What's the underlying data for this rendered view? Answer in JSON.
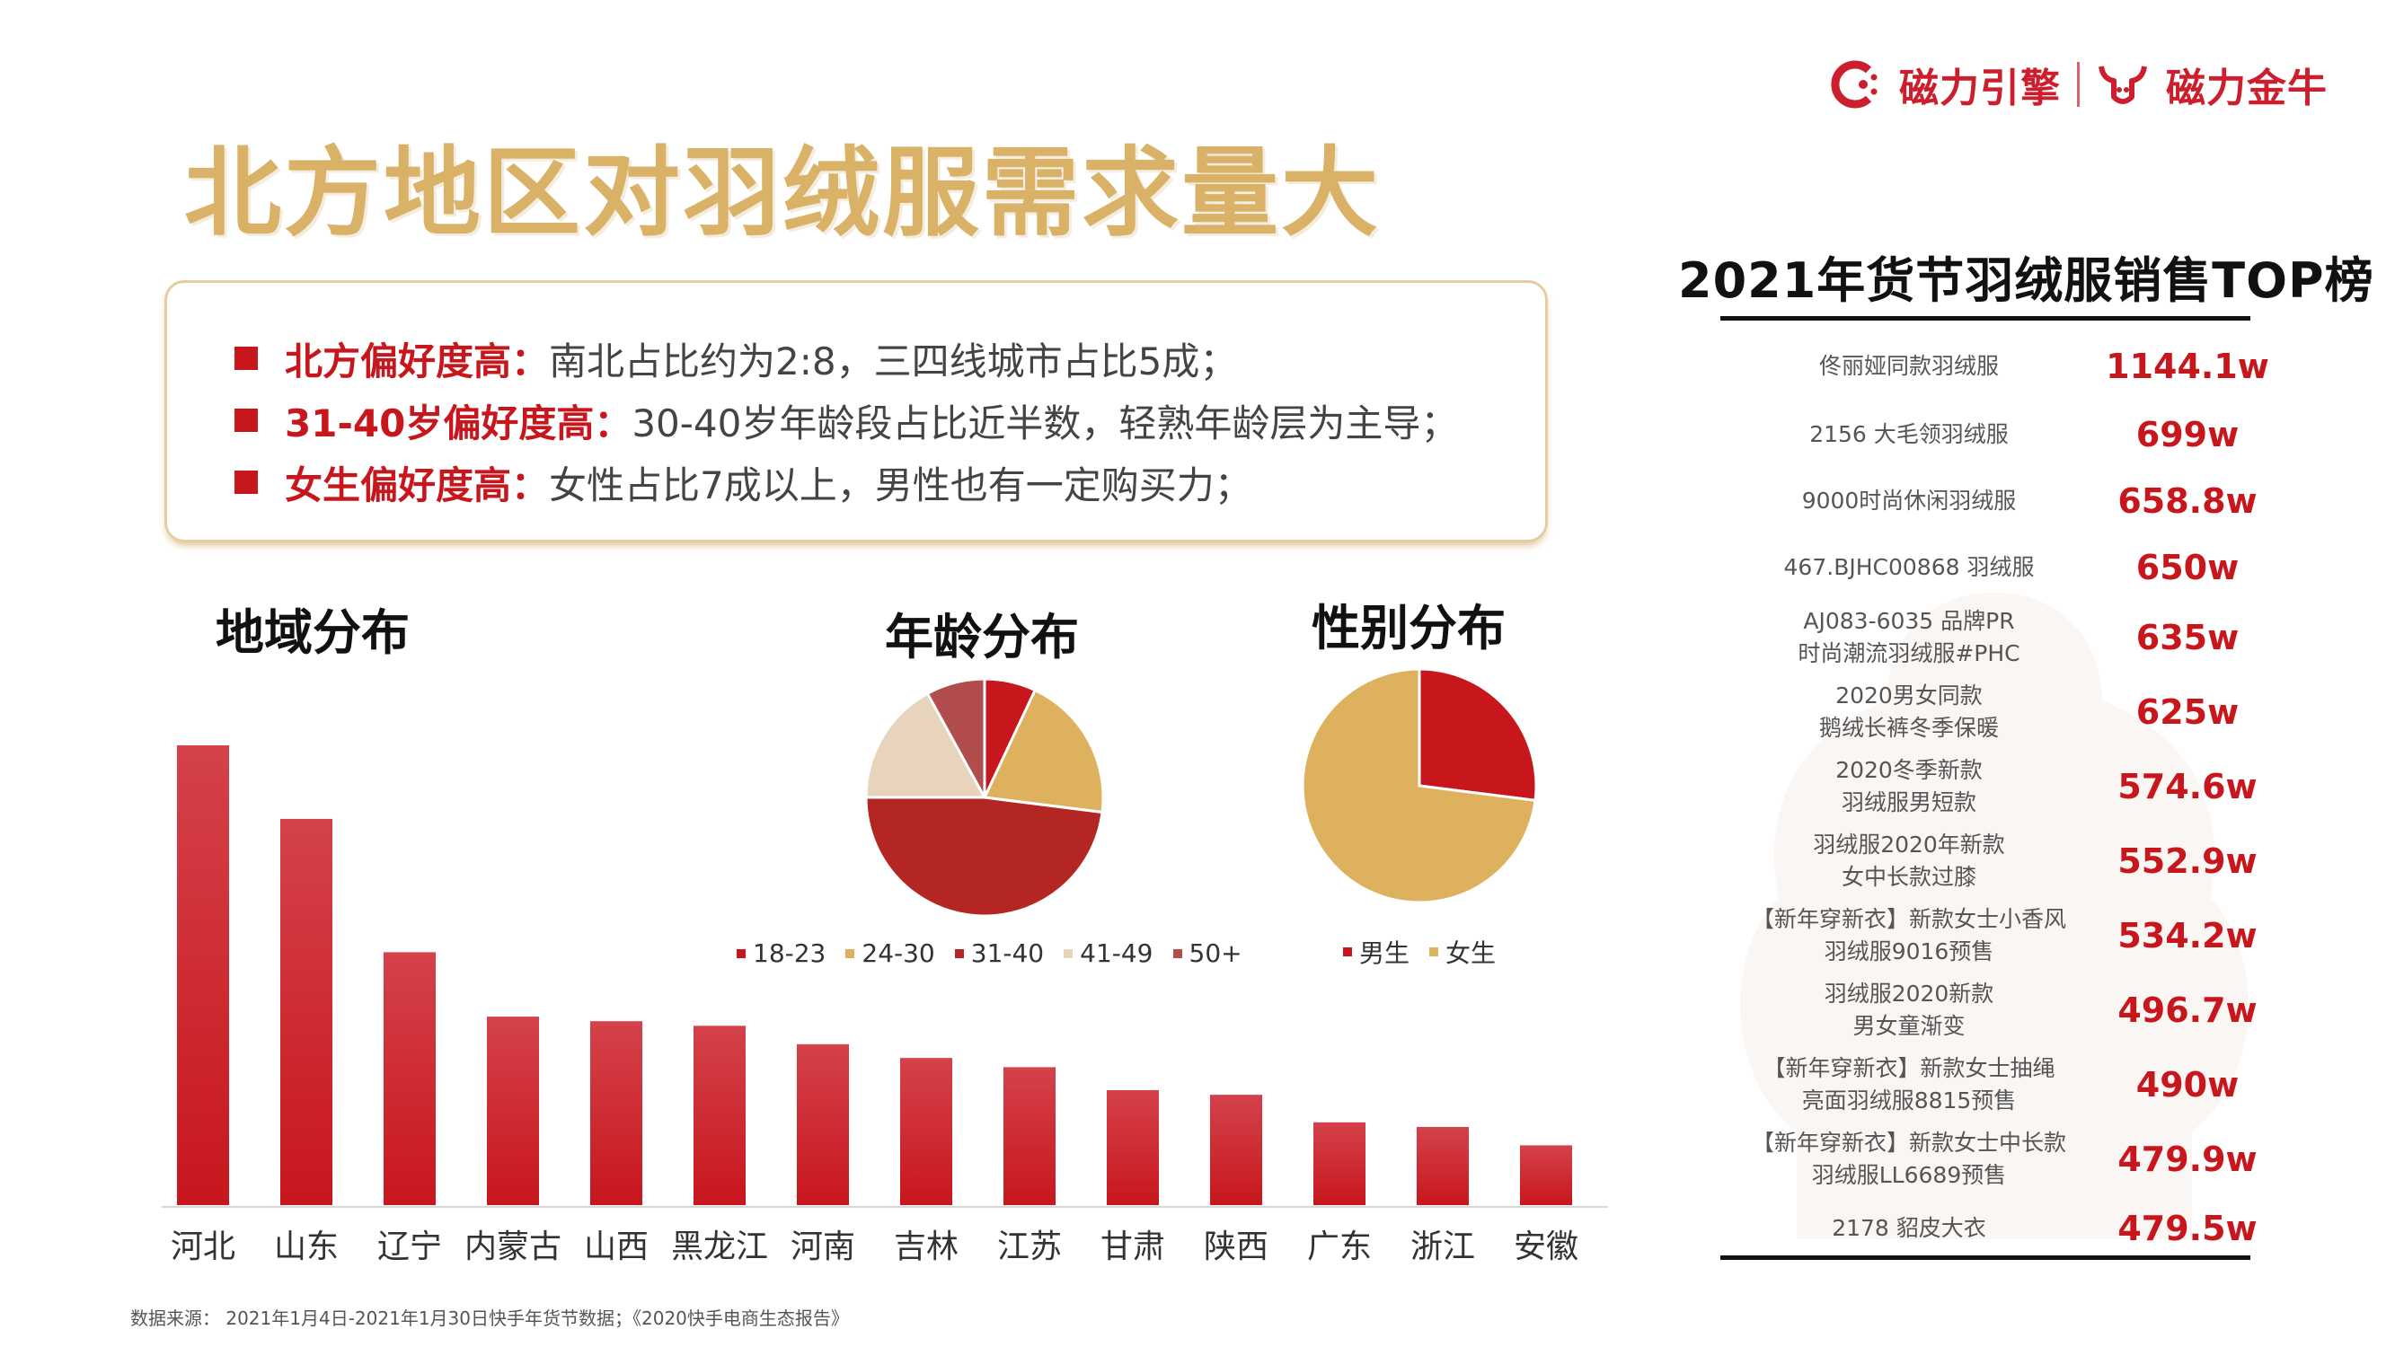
{
  "brand": {
    "logo1": "磁力引擎",
    "logo2": "磁力金牛"
  },
  "title": "北方地区对羽绒服需求量大",
  "highlights": [
    {
      "key": "北方偏好度高：",
      "text": "南北占比约为2:8，三四线城市占比5成；"
    },
    {
      "key": "31-40岁偏好度高：",
      "text": "30-40岁年龄段占比近半数，轻熟年龄层为主导；"
    },
    {
      "key": "女生偏好度高：",
      "text": "女性占比7成以上，男性也有一定购买力；"
    }
  ],
  "sections": {
    "region": "地域分布",
    "age": "年龄分布",
    "gender": "性别分布"
  },
  "colors": {
    "red": "#c8161d",
    "darkred": "#b32624",
    "gold": "#ddb15e",
    "beige": "#e8d3bd",
    "brownred": "#b14d4d"
  },
  "chart_data": [
    {
      "type": "bar",
      "title": "地域分布",
      "categories": [
        "河北",
        "山东",
        "辽宁",
        "内蒙古",
        "山西",
        "黑龙江",
        "河南",
        "吉林",
        "江苏",
        "甘肃",
        "陕西",
        "广东",
        "浙江",
        "安徽"
      ],
      "values": [
        100,
        84,
        55,
        41,
        40,
        39,
        35,
        32,
        30,
        25,
        24,
        18,
        17,
        13
      ],
      "ylim": [
        0,
        100
      ],
      "grid": false,
      "legend": "none"
    },
    {
      "type": "pie",
      "title": "年龄分布",
      "labels": [
        "18-23",
        "24-30",
        "31-40",
        "41-49",
        "50+"
      ],
      "values": [
        7,
        20,
        48,
        17,
        8
      ],
      "colors": [
        "#c8161d",
        "#ddb15e",
        "#b32624",
        "#e8d3bd",
        "#b14d4d"
      ],
      "legend": "bottom"
    },
    {
      "type": "pie",
      "title": "性别分布",
      "labels": [
        "男生",
        "女生"
      ],
      "values": [
        27,
        73
      ],
      "colors": [
        "#c8161d",
        "#ddb15e"
      ],
      "legend": "bottom"
    }
  ],
  "ranking": {
    "title": "2021年货节羽绒服销售TOP榜",
    "items": [
      {
        "name": "佟丽娅同款羽绒服",
        "value": "1144.1w"
      },
      {
        "name": "2156 大毛领羽绒服",
        "value": "699w"
      },
      {
        "name": "9000时尚休闲羽绒服",
        "value": "658.8w"
      },
      {
        "name": "467.BJHC00868 羽绒服",
        "value": "650w"
      },
      {
        "name": "AJ083-6035 品牌PR\n时尚潮流羽绒服#PHC",
        "value": "635w"
      },
      {
        "name": "2020男女同款\n鹅绒长裤冬季保暖",
        "value": "625w"
      },
      {
        "name": "2020冬季新款\n羽绒服男短款",
        "value": "574.6w"
      },
      {
        "name": "羽绒服2020年新款\n女中长款过膝",
        "value": "552.9w"
      },
      {
        "name": "【新年穿新衣】新款女士小香风\n羽绒服9016预售",
        "value": "534.2w"
      },
      {
        "name": "羽绒服2020新款\n男女童渐变",
        "value": "496.7w"
      },
      {
        "name": "【新年穿新衣】新款女士抽绳\n亮面羽绒服8815预售",
        "value": "490w"
      },
      {
        "name": "【新年穿新衣】新款女士中长款\n羽绒服LL6689预售",
        "value": "479.9w"
      },
      {
        "name": "2178 貂皮大衣",
        "value": "479.5w"
      }
    ]
  },
  "source": "数据来源： 2021年1月4日-2021年1月30日快手年货节数据；《2020快手电商生态报告》"
}
